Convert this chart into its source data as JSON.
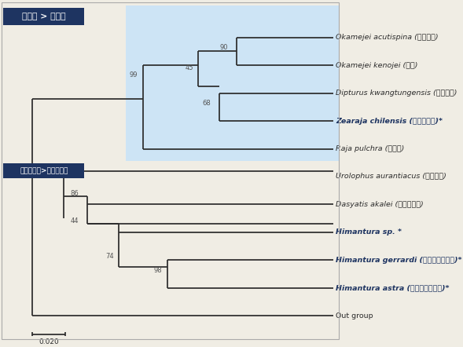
{
  "figsize": [
    5.89,
    4.42
  ],
  "dpi": 100,
  "bg_color": "#f0ede4",
  "blue_bg_color": "#cde4f5",
  "box_color": "#1e3461",
  "line_color": "#2b2b2b",
  "label_normal_color": "#2b2b2b",
  "label_bold_color": "#1e3461",
  "title1": "홍어목 > 홍어과",
  "title2": "매가오리목>색가오리과",
  "scale_label": "0.020",
  "taxa": [
    {
      "y": 10,
      "latin": "Okamejei acutispina",
      "korean": " (무니홍어)",
      "bold": false
    },
    {
      "y": 9,
      "latin": "Okamejei kenojei",
      "korean": " (홍어)",
      "bold": false
    },
    {
      "y": 8,
      "latin": "Dipturus kwangtungensis",
      "korean": " (광동홍어)",
      "bold": false
    },
    {
      "y": 7,
      "latin": "Zearaja chilensis",
      "korean": " (노랑코홍어)*",
      "bold": true
    },
    {
      "y": 6,
      "latin": "Raja pulchra",
      "korean": " (참홍어)",
      "bold": false
    },
    {
      "y": 5,
      "latin": "Urolophus aurantiacus",
      "korean": " (흔가오리)",
      "bold": false
    },
    {
      "y": 4,
      "latin": "Dasyatis akalei",
      "korean": " (노랑가오리)",
      "bold": false
    },
    {
      "y": 3,
      "latin": "Himantura sp. *",
      "korean": "",
      "bold": true
    },
    {
      "y": 2,
      "latin": "Himantura gerrardi",
      "korean": " (골판소녀가오리)*",
      "bold": true
    },
    {
      "y": 1,
      "latin": "Himantura astra",
      "korean": " (흥점소녀가오리)*",
      "bold": true
    },
    {
      "y": 0,
      "latin": "Out group",
      "korean": "",
      "bold": false,
      "noitalic": true
    }
  ],
  "nodes": [
    {
      "label": "90",
      "bx": 6.55,
      "by": 9.52
    },
    {
      "label": "45",
      "bx": 5.55,
      "by": 8.77
    },
    {
      "label": "99",
      "bx": 3.95,
      "by": 8.52
    },
    {
      "label": "68",
      "bx": 6.05,
      "by": 7.52
    },
    {
      "label": "86",
      "bx": 2.25,
      "by": 4.27
    },
    {
      "label": "44",
      "bx": 2.25,
      "by": 3.27
    },
    {
      "label": "74",
      "bx": 3.25,
      "by": 2.02
    },
    {
      "label": "98",
      "bx": 4.65,
      "by": 1.52
    }
  ],
  "xlim": [
    0,
    9.8
  ],
  "ylim": [
    -0.9,
    11.3
  ]
}
